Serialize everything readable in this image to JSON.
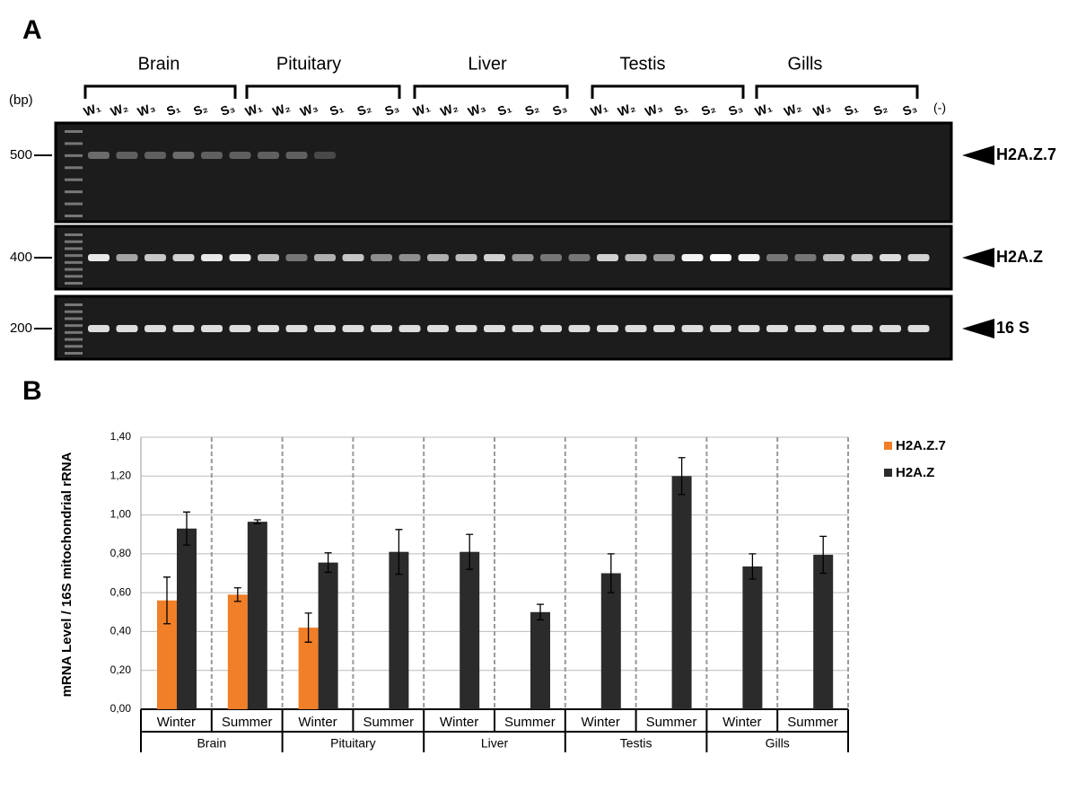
{
  "panel_a": {
    "label": "A",
    "bp_label": "(bp)",
    "markers": [
      "500",
      "400",
      "200"
    ],
    "tissues": [
      {
        "name": "Brain",
        "lanes": [
          "W₁",
          "W₂",
          "W₃",
          "S₁",
          "S₂",
          "S₃"
        ]
      },
      {
        "name": "Pituitary",
        "lanes": [
          "W₁",
          "W₂",
          "W₃",
          "S₁",
          "S₂",
          "S₃"
        ]
      },
      {
        "name": "Liver",
        "lanes": [
          "W₁",
          "W₂",
          "W₃",
          "S₁",
          "S₂",
          "S₃"
        ]
      },
      {
        "name": "Testis",
        "lanes": [
          "W₁",
          "W₂",
          "W₃",
          "S₁",
          "S₂",
          "S₃"
        ]
      },
      {
        "name": "Gills",
        "lanes": [
          "W₁",
          "W₂",
          "W₃",
          "S₁",
          "S₂",
          "S₃"
        ]
      }
    ],
    "negative": "(-)",
    "bands": [
      "H2A.Z.7",
      "H2A.Z",
      "16 S"
    ]
  },
  "panel_b": {
    "label": "B"
  },
  "chart_data": {
    "type": "bar",
    "y_label": "mRNA Level / 16S mitochondrial rRNA",
    "categories": [
      "Winter",
      "Summer",
      "Winter",
      "Summer",
      "Winter",
      "Summer",
      "Winter",
      "Summer",
      "Winter",
      "Summer"
    ],
    "groups": [
      "Brain",
      "Pituitary",
      "Liver",
      "Testis",
      "Gills"
    ],
    "series": [
      {
        "name": "H2A.Z.7",
        "color": "#f07f28",
        "values": [
          0.56,
          0.59,
          0.42,
          null,
          null,
          null,
          null,
          null,
          null,
          null
        ],
        "errors": [
          0.12,
          0.035,
          0.075,
          null,
          null,
          null,
          null,
          null,
          null,
          null
        ]
      },
      {
        "name": "H2A.Z",
        "color": "#2b2b2b",
        "values": [
          0.93,
          0.965,
          0.755,
          0.81,
          0.81,
          0.5,
          0.7,
          1.2,
          0.735,
          0.795
        ],
        "errors": [
          0.085,
          0.01,
          0.05,
          0.115,
          0.09,
          0.04,
          0.1,
          0.095,
          0.065,
          0.095
        ]
      }
    ],
    "ylim": [
      0,
      1.4
    ],
    "yticks": [
      {
        "value": 0,
        "label": "0,00"
      },
      {
        "value": 0.2,
        "label": "0,20"
      },
      {
        "value": 0.4,
        "label": "0,40"
      },
      {
        "value": 0.6,
        "label": "0,60"
      },
      {
        "value": 0.8,
        "label": "0,80"
      },
      {
        "value": 1,
        "label": "1,00"
      },
      {
        "value": 1.2,
        "label": "1,20"
      },
      {
        "value": 1.4,
        "label": "1,40"
      }
    ],
    "grid": true
  }
}
